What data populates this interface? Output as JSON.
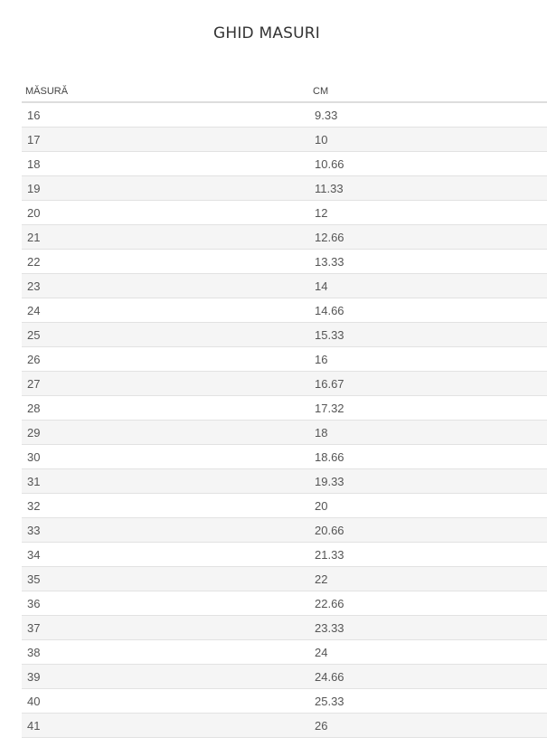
{
  "title": "GHID MASURI",
  "table": {
    "headers": [
      "MĂSURĂ",
      "CM"
    ],
    "rows": [
      [
        "16",
        "9.33"
      ],
      [
        "17",
        "10"
      ],
      [
        "18",
        "10.66"
      ],
      [
        "19",
        "11.33"
      ],
      [
        "20",
        "12"
      ],
      [
        "21",
        "12.66"
      ],
      [
        "22",
        "13.33"
      ],
      [
        "23",
        "14"
      ],
      [
        "24",
        "14.66"
      ],
      [
        "25",
        "15.33"
      ],
      [
        "26",
        "16"
      ],
      [
        "27",
        "16.67"
      ],
      [
        "28",
        "17.32"
      ],
      [
        "29",
        "18"
      ],
      [
        "30",
        "18.66"
      ],
      [
        "31",
        "19.33"
      ],
      [
        "32",
        "20"
      ],
      [
        "33",
        "20.66"
      ],
      [
        "34",
        "21.33"
      ],
      [
        "35",
        "22"
      ],
      [
        "36",
        "22.66"
      ],
      [
        "37",
        "23.33"
      ],
      [
        "38",
        "24"
      ],
      [
        "39",
        "24.66"
      ],
      [
        "40",
        "25.33"
      ],
      [
        "41",
        "26"
      ]
    ]
  }
}
